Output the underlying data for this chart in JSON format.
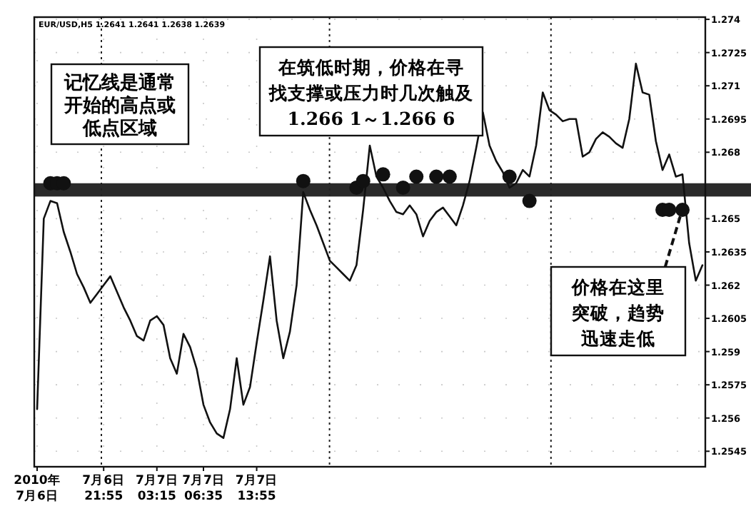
{
  "chart_data": {
    "type": "line",
    "subtitle": "EUR/USD,H5 1.2641 1.2641 1.2638 1.2639",
    "categories": [
      "2010年 7月6日",
      null,
      null,
      null,
      null,
      null,
      null,
      null,
      null,
      null,
      "7月6日 21:55",
      null,
      null,
      null,
      null,
      null,
      null,
      null,
      "7月7日 03:15",
      null,
      null,
      null,
      null,
      null,
      null,
      "7月7日 06:35",
      null,
      null,
      null,
      null,
      null,
      null,
      null,
      "7月7日 13:55",
      null,
      null,
      null,
      null,
      null,
      null,
      null,
      null,
      null,
      null,
      null,
      null,
      null,
      null,
      null,
      null,
      null,
      null,
      null,
      null,
      null,
      null,
      null,
      null,
      null,
      null,
      null,
      null,
      null,
      null,
      null,
      null,
      null,
      null,
      null,
      null,
      null,
      null,
      null,
      null,
      null,
      null,
      null,
      null,
      null,
      null,
      null,
      null,
      null,
      null,
      null,
      null,
      null,
      null,
      null,
      null,
      null,
      null,
      null,
      null,
      null,
      null,
      null,
      null,
      null,
      null,
      null
    ],
    "ylim": [
      1.2538,
      1.2741
    ],
    "yticks": [
      1.2545,
      1.256,
      1.2575,
      1.259,
      1.2605,
      1.262,
      1.2635,
      1.265,
      1.268,
      1.2695,
      1.271,
      1.2725,
      1.274
    ],
    "grid": true,
    "line_style": "solid",
    "bands": [
      {
        "axis": "y",
        "from": 1.266,
        "to": 1.2666,
        "color": "#2a2a2a"
      }
    ],
    "series": [
      {
        "color": "#111111",
        "values": [
          1.2564,
          1.265,
          1.2658,
          1.2657,
          1.2644,
          1.2635,
          1.2625,
          1.2619,
          1.2612,
          1.2616,
          1.262,
          1.2624,
          1.2617,
          1.261,
          1.2604,
          1.2597,
          1.2595,
          1.2604,
          1.2606,
          1.2602,
          1.2587,
          1.258,
          1.2598,
          1.2592,
          1.2582,
          1.2566,
          1.2558,
          1.2553,
          1.2551,
          1.2564,
          1.2587,
          1.2566,
          1.2574,
          1.2594,
          1.2613,
          1.2633,
          1.2604,
          1.2587,
          1.2599,
          1.262,
          1.2662,
          1.2654,
          1.2647,
          1.2639,
          1.2631,
          1.2628,
          1.2625,
          1.2622,
          1.2629,
          1.2654,
          1.2683,
          1.2669,
          1.2664,
          1.2658,
          1.2653,
          1.2652,
          1.2656,
          1.2652,
          1.2642,
          1.2649,
          1.2653,
          1.2655,
          1.2651,
          1.2647,
          1.2656,
          1.2667,
          1.2682,
          1.2698,
          1.2683,
          1.2676,
          1.2671,
          1.2664,
          1.2666,
          1.2672,
          1.2669,
          1.2683,
          1.2707,
          1.2699,
          1.2697,
          1.2694,
          1.2695,
          1.2695,
          1.2678,
          1.268,
          1.2686,
          1.2689,
          1.2687,
          1.2684,
          1.2682,
          1.2695,
          1.272,
          1.2707,
          1.2706,
          1.2685,
          1.2672,
          1.2679,
          1.2669,
          1.267,
          1.2639,
          1.2622,
          1.2629
        ]
      },
      {
        "type": "scatter",
        "color": "#111111",
        "marker": "circle",
        "values": [
          null,
          null,
          1.2666,
          1.2666,
          1.2666,
          null,
          null,
          null,
          null,
          null,
          null,
          null,
          null,
          null,
          null,
          null,
          null,
          null,
          null,
          null,
          null,
          null,
          null,
          null,
          null,
          null,
          null,
          null,
          null,
          null,
          null,
          null,
          null,
          null,
          null,
          null,
          null,
          null,
          null,
          null,
          1.2667,
          null,
          null,
          null,
          null,
          null,
          null,
          null,
          1.2664,
          1.2667,
          null,
          null,
          1.267,
          null,
          null,
          1.2664,
          null,
          1.2669,
          null,
          null,
          1.2669,
          null,
          1.2669,
          null,
          null,
          null,
          null,
          null,
          null,
          null,
          null,
          1.2669,
          null,
          null,
          1.2658,
          null,
          null,
          null,
          null,
          null,
          null,
          null,
          null,
          null,
          null,
          null,
          null,
          null,
          null,
          null,
          null,
          null,
          null,
          null,
          1.2654,
          1.2654,
          null,
          1.2654,
          null,
          null,
          null
        ]
      }
    ],
    "annotations": [
      "记忆线是通常开始的高点或低点区域",
      "在筑低时期，价格在寻找支撑或压力时几次触及1.266 1～1.266 6",
      "价格在这里突破，趋势迅速走低"
    ]
  }
}
